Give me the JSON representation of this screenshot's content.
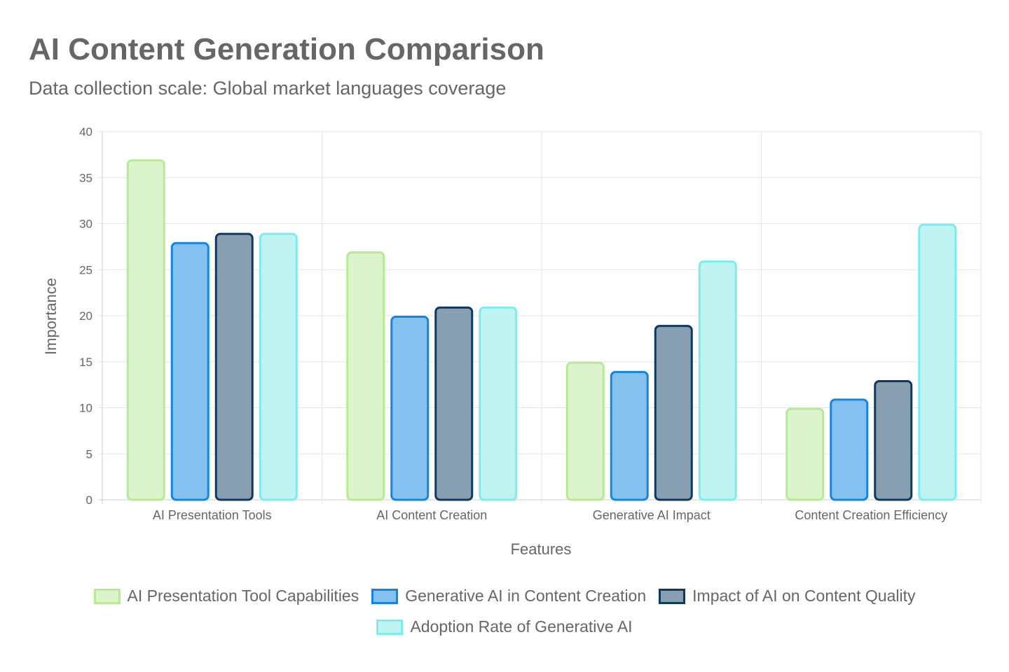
{
  "chart_data": {
    "type": "bar",
    "title": "AI Content Generation Comparison",
    "subtitle": "Data collection scale: Global market languages coverage",
    "xlabel": "Features",
    "ylabel": "Importance",
    "ylim": [
      0,
      40
    ],
    "yticks": [
      0,
      5,
      10,
      15,
      20,
      25,
      30,
      35,
      40
    ],
    "grid": true,
    "legend_position": "bottom",
    "categories": [
      "AI Presentation Tools",
      "AI Content Creation",
      "Generative AI Impact",
      "Content Creation Efficiency"
    ],
    "series": [
      {
        "name": "AI Presentation Tool Capabilities",
        "values": [
          37,
          27,
          15,
          10
        ],
        "fill": "#dbf4cb",
        "border": "#b7ea94"
      },
      {
        "name": "Generative AI in Content Creation",
        "values": [
          28,
          20,
          14,
          11
        ],
        "fill": "#85c1ef",
        "border": "#1585e0"
      },
      {
        "name": "Impact of AI on Content Quality",
        "values": [
          29,
          21,
          19,
          13
        ],
        "fill": "#889eb1",
        "border": "#0f3a5e"
      },
      {
        "name": "Adoption Rate of Generative AI",
        "values": [
          29,
          21,
          26,
          30
        ],
        "fill": "#c0f4f3",
        "border": "#7eecec"
      }
    ]
  }
}
